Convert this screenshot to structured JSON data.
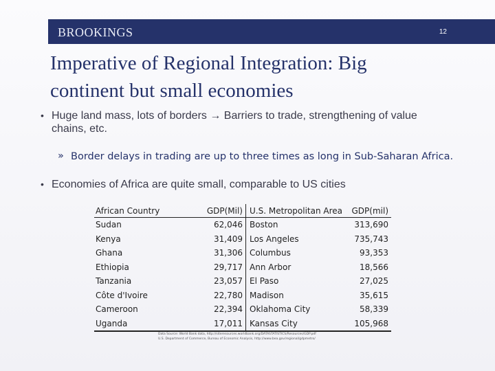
{
  "header": {
    "logo": "BROOKINGS",
    "page_number": "12"
  },
  "title_line1": "Imperative of Regional Integration: Big",
  "title_line2": "continent but small economies",
  "bullets": [
    {
      "line1": "Huge land mass, lots of borders → Barriers to trade, strengthening of value",
      "line2": "chains, etc."
    },
    {
      "line1": "Economies of Africa are quite small, comparable to US cities"
    }
  ],
  "sub_bullet": "Border delays in trading are up to three times as long in Sub-Saharan Africa.",
  "table": {
    "headers": [
      "African Country",
      "GDP(Mil)",
      "U.S. Metropolitan Area",
      "GDP(mil)"
    ],
    "rows": [
      [
        "Sudan",
        "62,046",
        "Boston",
        "313,690"
      ],
      [
        "Kenya",
        "31,409",
        "Los Angeles",
        "735,743"
      ],
      [
        "Ghana",
        "31,306",
        "Columbus",
        "93,353"
      ],
      [
        "Ethiopia",
        "29,717",
        "Ann Arbor",
        "18,566"
      ],
      [
        "Tanzania",
        "23,057",
        "El Paso",
        "27,025"
      ],
      [
        "Côte d'Ivoire",
        "22,780",
        "Madison",
        "35,615"
      ],
      [
        "Cameroon",
        "22,394",
        "Oklahoma City",
        "58,339"
      ],
      [
        "Uganda",
        "17,011",
        "Kansas City",
        "105,968"
      ]
    ]
  },
  "sources": [
    "Data Source: World Bank data, http://siteresources.worldbank.org/DATASTATISTICS/Resources/GDP.pdf",
    "U.S. Department of Commerce, Bureau of Economic Analysis, http://www.bea.gov/regional/gdpmetro/"
  ]
}
